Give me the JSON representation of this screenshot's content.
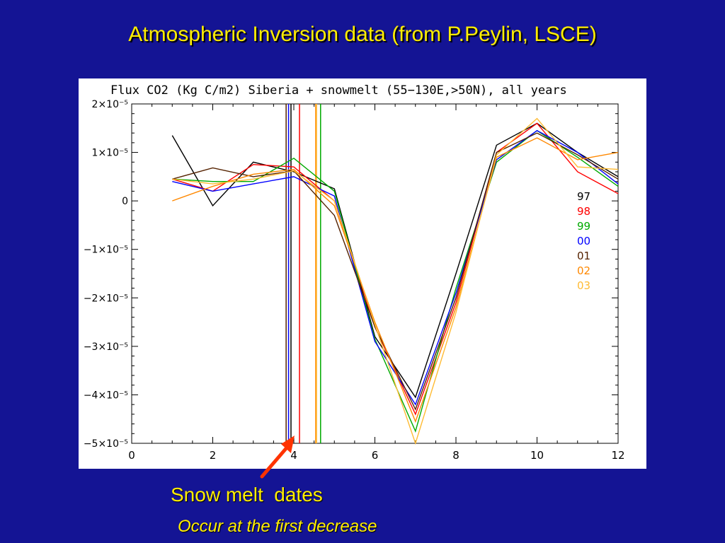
{
  "slide": {
    "title": "Atmospheric Inversion data (from P.Peylin, LSCE)",
    "caption_main": "Snow melt  dates",
    "caption_sub": "Occur at the first decrease",
    "arrow_color": "#ff3300",
    "title_color": "#ffee00",
    "background": "#141494"
  },
  "chart_data": {
    "type": "line",
    "title": "Flux CO2 (Kg C/m2) Siberia + snowmelt (55−130E,>50N), all years",
    "xlabel": "",
    "ylabel": "",
    "xlim": [
      0,
      12
    ],
    "ylim": [
      -5e-05,
      2e-05
    ],
    "x_ticks": [
      0,
      2,
      4,
      6,
      8,
      10,
      12
    ],
    "y_ticks": [
      {
        "value": 2e-05,
        "label": "2×10⁻⁵"
      },
      {
        "value": 1e-05,
        "label": "1×10⁻⁵"
      },
      {
        "value": 0,
        "label": "0"
      },
      {
        "value": -1e-05,
        "label": "−1×10⁻⁵"
      },
      {
        "value": -2e-05,
        "label": "−2×10⁻⁵"
      },
      {
        "value": -3e-05,
        "label": "−3×10⁻⁵"
      },
      {
        "value": -4e-05,
        "label": "−4×10⁻⁵"
      },
      {
        "value": -5e-05,
        "label": "−5×10⁻⁵"
      }
    ],
    "grid": false,
    "legend_position": "right",
    "x": [
      1,
      2,
      3,
      4,
      5,
      6,
      7,
      8,
      9,
      10,
      11,
      12
    ],
    "series": [
      {
        "name": "97",
        "color": "#000000",
        "values": [
          1.35e-05,
          -1e-06,
          8e-06,
          6e-06,
          2.5e-06,
          -2.8e-05,
          -4.05e-05,
          -1.5e-05,
          1.15e-05,
          1.6e-05,
          1e-05,
          5e-06
        ],
        "snowmelt": 3.93
      },
      {
        "name": "98",
        "color": "#ff0000",
        "values": [
          4.5e-06,
          2e-06,
          7.5e-06,
          7e-06,
          0.0,
          -2.6e-05,
          -4.4e-05,
          -2.1e-05,
          1e-05,
          1.6e-05,
          6e-06,
          1.5e-06
        ],
        "snowmelt": 4.14
      },
      {
        "name": "99",
        "color": "#00aa00",
        "values": [
          4.5e-06,
          4e-06,
          4e-06,
          8.8e-06,
          2e-06,
          -2.85e-05,
          -4.75e-05,
          -1.8e-05,
          8e-06,
          1.45e-05,
          9e-06,
          3e-06
        ],
        "snowmelt": 4.66
      },
      {
        "name": "00",
        "color": "#0000ff",
        "values": [
          4e-06,
          2e-06,
          3.5e-06,
          5e-06,
          1e-06,
          -2.9e-05,
          -4.2e-05,
          -1.9e-05,
          8.5e-06,
          1.45e-05,
          1e-05,
          3.5e-06
        ],
        "snowmelt": 3.87
      },
      {
        "name": "01",
        "color": "#552200",
        "values": [
          4.5e-06,
          6.8e-06,
          5e-06,
          6.2e-06,
          -3e-06,
          -2.6e-05,
          -4.3e-05,
          -2e-05,
          1e-05,
          1.4e-05,
          9.5e-06,
          4.5e-06
        ],
        "snowmelt": 3.81
      },
      {
        "name": "02",
        "color": "#ff8800",
        "values": [
          0.0,
          3e-06,
          5.5e-06,
          6.5e-06,
          -1e-06,
          -2.5e-05,
          -4.55e-05,
          -2.2e-05,
          9e-06,
          1.3e-05,
          8.5e-06,
          1e-05
        ],
        "snowmelt": 4.54
      },
      {
        "name": "03",
        "color": "#ffbb33",
        "values": [
          4.5e-06,
          3.5e-06,
          4.5e-06,
          6.2e-06,
          0.0,
          -2.55e-05,
          -5e-05,
          -2.3e-05,
          9.5e-06,
          1.7e-05,
          7e-06,
          6.5e-06
        ],
        "snowmelt": 4.56
      }
    ]
  }
}
